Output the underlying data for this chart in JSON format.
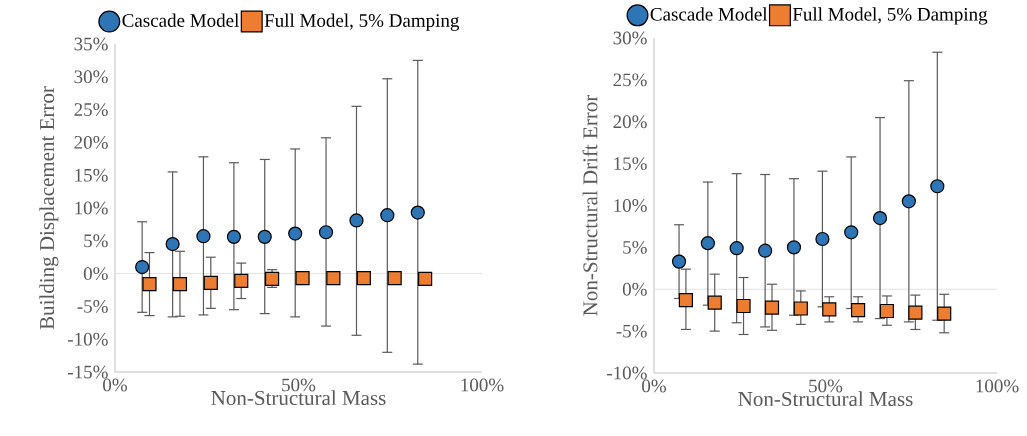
{
  "chart_data": [
    {
      "type": "scatter",
      "xlabel": "Non-Structural Mass",
      "ylabel": "Building Displacement Error",
      "xlim": [
        0,
        100
      ],
      "xticks": [
        {
          "value": 0,
          "label": "0%"
        },
        {
          "value": 50,
          "label": "50%"
        },
        {
          "value": 100,
          "label": "100%"
        }
      ],
      "ylim": [
        -15,
        35
      ],
      "yticks": [
        {
          "value": -15,
          "label": "-15%"
        },
        {
          "value": -10,
          "label": "-10%"
        },
        {
          "value": -5,
          "label": "-5%"
        },
        {
          "value": 0,
          "label": "0%"
        },
        {
          "value": 5,
          "label": "5%"
        },
        {
          "value": 10,
          "label": "10%"
        },
        {
          "value": 15,
          "label": "15%"
        },
        {
          "value": 20,
          "label": "20%"
        },
        {
          "value": 25,
          "label": "25%"
        },
        {
          "value": 30,
          "label": "30%"
        },
        {
          "value": 35,
          "label": "35%"
        }
      ],
      "legend": "top",
      "ref_lines": [
        {
          "axis": "y",
          "value": 0,
          "color": "#d9d9d9"
        }
      ],
      "series": [
        {
          "name": "Cascade Model",
          "color": "#2e75b6",
          "marker": "circle",
          "x": [
            7.4,
            15.7,
            24.1,
            32.4,
            40.8,
            49.1,
            57.5,
            65.8,
            74.2,
            82.5
          ],
          "values": [
            1.0,
            4.5,
            5.7,
            5.6,
            5.6,
            6.1,
            6.3,
            8.1,
            8.9,
            9.3
          ],
          "errors": [
            [
              -5.9,
              7.9
            ],
            [
              -6.6,
              15.5
            ],
            [
              -6.3,
              17.8
            ],
            [
              -5.5,
              16.9
            ],
            [
              -6.1,
              17.4
            ],
            [
              -6.6,
              19.0
            ],
            [
              -8.0,
              20.7
            ],
            [
              -9.4,
              25.5
            ],
            [
              -12.0,
              29.7
            ],
            [
              -13.8,
              32.5
            ]
          ]
        },
        {
          "name": "Full Model, 5% Damping",
          "color": "#ed7d31",
          "marker": "square",
          "x": [
            9.4,
            17.7,
            26.1,
            34.4,
            42.8,
            51.1,
            59.5,
            67.8,
            76.2,
            84.5
          ],
          "values": [
            -1.6,
            -1.6,
            -1.4,
            -1.1,
            -0.8,
            -0.7,
            -0.7,
            -0.7,
            -0.7,
            -0.8
          ],
          "errors": [
            [
              -6.4,
              3.2
            ],
            [
              -6.5,
              3.4
            ],
            [
              -5.3,
              2.5
            ],
            [
              -3.8,
              1.6
            ],
            [
              -2.1,
              0.6
            ],
            null,
            null,
            null,
            null,
            null
          ]
        }
      ]
    },
    {
      "type": "scatter",
      "xlabel": "Non-Structural Mass",
      "ylabel": "Non-Structural Drift Error",
      "xlim": [
        0,
        100
      ],
      "xticks": [
        {
          "value": 0,
          "label": "0%"
        },
        {
          "value": 50,
          "label": "50%"
        },
        {
          "value": 100,
          "label": "100%"
        }
      ],
      "ylim": [
        -10,
        30
      ],
      "yticks": [
        {
          "value": -10,
          "label": "-10%"
        },
        {
          "value": -5,
          "label": "-5%"
        },
        {
          "value": 0,
          "label": "0%"
        },
        {
          "value": 5,
          "label": "5%"
        },
        {
          "value": 10,
          "label": "10%"
        },
        {
          "value": 15,
          "label": "15%"
        },
        {
          "value": 20,
          "label": "20%"
        },
        {
          "value": 25,
          "label": "25%"
        },
        {
          "value": 30,
          "label": "30%"
        }
      ],
      "legend": "top",
      "ref_lines": [
        {
          "axis": "y",
          "value": 0,
          "color": "#d9d9d9"
        }
      ],
      "series": [
        {
          "name": "Cascade Model",
          "color": "#2e75b6",
          "marker": "circle",
          "x": [
            7.3,
            15.7,
            24.1,
            32.4,
            40.8,
            49.1,
            57.5,
            65.9,
            74.3,
            82.6
          ],
          "values": [
            3.3,
            5.5,
            4.9,
            4.6,
            5.0,
            6.0,
            6.8,
            8.5,
            10.5,
            12.3
          ],
          "errors": [
            [
              -1.1,
              7.7
            ],
            [
              -1.9,
              12.8
            ],
            [
              -4.0,
              13.8
            ],
            [
              -4.5,
              13.7
            ],
            [
              -3.1,
              13.2
            ],
            [
              -2.1,
              14.1
            ],
            [
              -2.3,
              15.8
            ],
            [
              -3.5,
              20.5
            ],
            [
              -3.9,
              24.9
            ],
            [
              -3.7,
              28.3
            ]
          ]
        },
        {
          "name": "Full Model, 5% Damping",
          "color": "#ed7d31",
          "marker": "square",
          "x": [
            9.3,
            17.7,
            26.1,
            34.4,
            42.8,
            51.1,
            59.5,
            67.9,
            76.2,
            84.6
          ],
          "values": [
            -1.3,
            -1.6,
            -2.0,
            -2.2,
            -2.3,
            -2.4,
            -2.5,
            -2.6,
            -2.8,
            -2.9
          ],
          "errors": [
            [
              -4.8,
              2.4
            ],
            [
              -5.0,
              1.8
            ],
            [
              -5.4,
              1.4
            ],
            [
              -4.9,
              0.6
            ],
            [
              -4.2,
              -0.2
            ],
            [
              -3.9,
              -0.9
            ],
            [
              -3.9,
              -0.9
            ],
            [
              -4.3,
              -0.8
            ],
            [
              -4.8,
              -0.7
            ],
            [
              -5.2,
              -0.6
            ]
          ]
        }
      ]
    }
  ]
}
